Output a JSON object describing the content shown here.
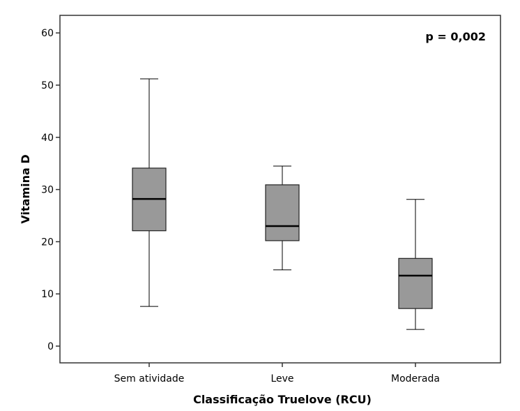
{
  "chart_data": {
    "type": "box",
    "title": "",
    "annotation": "p = 0,002",
    "xlabel": "Classificação Truelove (RCU)",
    "ylabel": "Vitamina D",
    "ylim": [
      -4.5,
      62.5
    ],
    "yticks": [
      0,
      10,
      20,
      30,
      40,
      50,
      60
    ],
    "categories": [
      "Sem atividade",
      "Leve",
      "Moderada"
    ],
    "boxes": [
      {
        "min": 7.6,
        "q1": 22.1,
        "median": 28.2,
        "q3": 34.1,
        "max": 51.2
      },
      {
        "min": 14.6,
        "q1": 20.2,
        "median": 23.0,
        "q3": 30.9,
        "max": 34.5
      },
      {
        "min": 3.2,
        "q1": 7.2,
        "median": 13.5,
        "q3": 16.8,
        "max": 28.1
      }
    ],
    "colors": {
      "box_fill": "#999999",
      "stroke": "#000000"
    }
  }
}
